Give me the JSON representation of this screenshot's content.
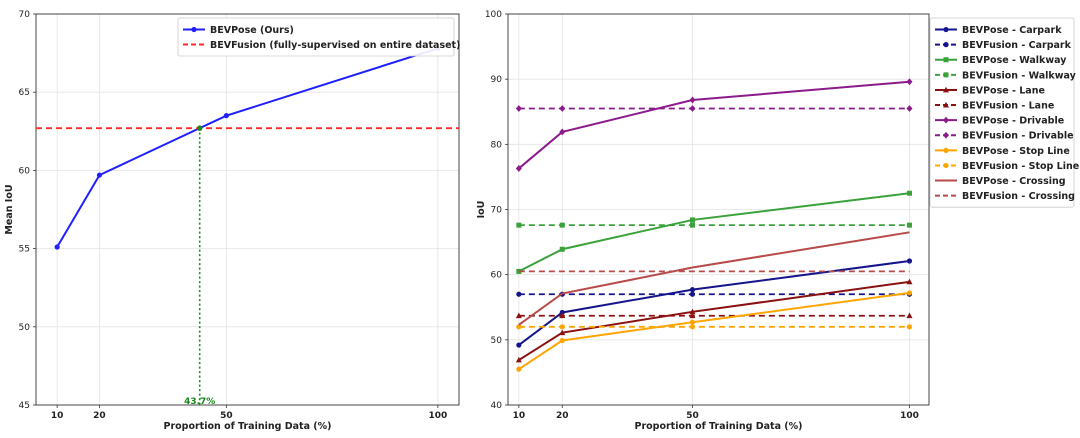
{
  "chart_data": [
    {
      "type": "line",
      "title": "",
      "xlabel": "Proportion of Training Data (%)",
      "ylabel": "Mean IoU",
      "xlim": [
        5,
        105
      ],
      "ylim": [
        45,
        70
      ],
      "xticks": [
        10,
        20,
        50,
        100
      ],
      "yticks": [
        45,
        50,
        55,
        60,
        65,
        70
      ],
      "grid": true,
      "legend_position": "top-right",
      "series": [
        {
          "name": "BEVPose (Ours)",
          "style": "solid",
          "marker": "circle",
          "color": "#1f1fff",
          "x": [
            10,
            20,
            50,
            100
          ],
          "y": [
            55.1,
            59.7,
            63.5,
            67.8
          ]
        },
        {
          "name": "BEVFusion (fully-supervised on entire dataset)",
          "style": "dashed",
          "marker": "none",
          "color": "#ff2a2a",
          "x": [
            5,
            105
          ],
          "y": [
            62.7,
            62.7
          ]
        }
      ],
      "annotations": [
        {
          "text": "43.7%",
          "x": 43.7,
          "y": 62.7,
          "color": "#1a8a1a",
          "style": "dotted-vertical"
        }
      ]
    },
    {
      "type": "line",
      "title": "",
      "xlabel": "Proportion of Training Data (%)",
      "ylabel": "IoU",
      "xlim": [
        7.5,
        104.5
      ],
      "ylim": [
        40,
        100
      ],
      "xticks": [
        10,
        20,
        50,
        100
      ],
      "yticks": [
        40,
        50,
        60,
        70,
        80,
        90,
        100
      ],
      "grid": true,
      "legend_position": "top-right",
      "series": [
        {
          "name": "BEVPose - Carpark",
          "style": "solid",
          "marker": "circle",
          "color": "#14148c",
          "x": [
            10,
            20,
            50,
            100
          ],
          "y": [
            49.2,
            54.2,
            57.7,
            62.1
          ]
        },
        {
          "name": "BEVFusion - Carpark",
          "style": "dashed",
          "marker": "circle",
          "color": "#14148c",
          "x": [
            10,
            20,
            50,
            100
          ],
          "y": [
            57.0,
            57.0,
            57.0,
            57.0
          ]
        },
        {
          "name": "BEVPose - Walkway",
          "style": "solid",
          "marker": "square",
          "color": "#3aa23a",
          "x": [
            10,
            20,
            50,
            100
          ],
          "y": [
            60.5,
            63.9,
            68.4,
            72.5
          ]
        },
        {
          "name": "BEVFusion - Walkway",
          "style": "dashed",
          "marker": "square",
          "color": "#3aa23a",
          "x": [
            10,
            20,
            50,
            100
          ],
          "y": [
            67.6,
            67.6,
            67.6,
            67.6
          ]
        },
        {
          "name": "BEVPose - Lane",
          "style": "solid",
          "marker": "triangle",
          "color": "#8b1010",
          "x": [
            10,
            20,
            50,
            100
          ],
          "y": [
            46.9,
            51.1,
            54.3,
            58.9
          ]
        },
        {
          "name": "BEVFusion - Lane",
          "style": "dashed",
          "marker": "triangle",
          "color": "#8b1010",
          "x": [
            10,
            20,
            50,
            100
          ],
          "y": [
            53.7,
            53.7,
            53.7,
            53.7
          ]
        },
        {
          "name": "BEVPose - Drivable",
          "style": "solid",
          "marker": "diamond",
          "color": "#8b1a8b",
          "x": [
            10,
            20,
            50,
            100
          ],
          "y": [
            76.3,
            81.9,
            86.8,
            89.6
          ]
        },
        {
          "name": "BEVFusion - Drivable",
          "style": "dashed",
          "marker": "diamond",
          "color": "#8b1a8b",
          "x": [
            10,
            20,
            50,
            100
          ],
          "y": [
            85.5,
            85.5,
            85.5,
            85.5
          ]
        },
        {
          "name": "BEVPose - Stop Line",
          "style": "solid",
          "marker": "circle",
          "color": "#ffa500",
          "x": [
            10,
            20,
            50,
            100
          ],
          "y": [
            45.5,
            49.9,
            52.7,
            57.2
          ]
        },
        {
          "name": "BEVFusion - Stop Line",
          "style": "dashed",
          "marker": "circle",
          "color": "#ffa500",
          "x": [
            10,
            20,
            50,
            100
          ],
          "y": [
            52.0,
            52.0,
            52.0,
            52.0
          ]
        },
        {
          "name": "BEVPose - Crossing",
          "style": "solid",
          "marker": "none",
          "color": "#b84a4a",
          "x": [
            10,
            20,
            50,
            100
          ],
          "y": [
            52.3,
            57.1,
            61.1,
            66.5
          ]
        },
        {
          "name": "BEVFusion - Crossing",
          "style": "dashed",
          "marker": "none",
          "color": "#b84a4a",
          "x": [
            10,
            20,
            50,
            100
          ],
          "y": [
            60.5,
            60.5,
            60.5,
            60.5
          ]
        }
      ]
    }
  ]
}
